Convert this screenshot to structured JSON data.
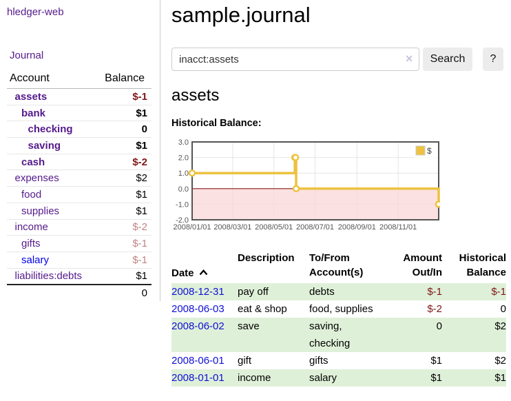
{
  "app": {
    "brand": "hledger-web",
    "nav_journal": "Journal"
  },
  "sidebar": {
    "table_headers": {
      "account": "Account",
      "balance": "Balance"
    },
    "accounts": [
      {
        "name": "assets",
        "depth": 1,
        "bold": true,
        "name_color": "purple",
        "balance": "$-1",
        "balance_color": "neg-strong"
      },
      {
        "name": "bank",
        "depth": 2,
        "bold": true,
        "name_color": "purple",
        "balance": "$1",
        "balance_color": "plain"
      },
      {
        "name": "checking",
        "depth": 3,
        "bold": true,
        "name_color": "purple",
        "balance": "0",
        "balance_color": "plain"
      },
      {
        "name": "saving",
        "depth": 3,
        "bold": true,
        "name_color": "purple",
        "balance": "$1",
        "balance_color": "plain"
      },
      {
        "name": "cash",
        "depth": 2,
        "bold": true,
        "name_color": "purple",
        "balance": "$-2",
        "balance_color": "neg-strong"
      },
      {
        "name": "expenses",
        "depth": 1,
        "bold": false,
        "name_color": "purple",
        "balance": "$2",
        "balance_color": "plain"
      },
      {
        "name": "food",
        "depth": 2,
        "bold": false,
        "name_color": "purple",
        "balance": "$1",
        "balance_color": "plain"
      },
      {
        "name": "supplies",
        "depth": 2,
        "bold": false,
        "name_color": "purple",
        "balance": "$1",
        "balance_color": "plain"
      },
      {
        "name": "income",
        "depth": 1,
        "bold": false,
        "name_color": "purple",
        "balance": "$-2",
        "balance_color": "neg-muted"
      },
      {
        "name": "gifts",
        "depth": 2,
        "bold": false,
        "name_color": "purple",
        "balance": "$-1",
        "balance_color": "neg-muted"
      },
      {
        "name": "salary",
        "depth": 2,
        "bold": false,
        "name_color": "blue",
        "balance": "$-1",
        "balance_color": "neg-muted"
      },
      {
        "name": "liabilities:debts",
        "depth": 1,
        "bold": false,
        "name_color": "purple",
        "balance": "$1",
        "balance_color": "plain"
      }
    ],
    "total": "0"
  },
  "main": {
    "title": "sample.journal",
    "search": {
      "value": "inacct:assets",
      "clear": "✕",
      "button_label": "Search",
      "help_label": "?"
    },
    "account_heading": "assets",
    "section_label": "Historical Balance:"
  },
  "chart_data": {
    "type": "line",
    "step": true,
    "title": "Historical Balance",
    "series": [
      {
        "name": "$",
        "color": "#edc240",
        "points": [
          [
            "2008-01-01",
            1
          ],
          [
            "2008-06-01",
            2
          ],
          [
            "2008-06-02",
            2
          ],
          [
            "2008-06-03",
            0
          ],
          [
            "2008-12-31",
            -1
          ]
        ]
      }
    ],
    "xlim": [
      "2008-01-01",
      "2008-12-31"
    ],
    "ylim": [
      -2,
      3
    ],
    "x_ticks": [
      {
        "date": "2008-01-01",
        "label": "2008/01/01"
      },
      {
        "date": "2008-03-01",
        "label": "2008/03/01"
      },
      {
        "date": "2008-05-01",
        "label": "2008/05/01"
      },
      {
        "date": "2008-07-01",
        "label": "2008/07/01"
      },
      {
        "date": "2008-09-01",
        "label": "2008/09/01"
      },
      {
        "date": "2008-11-01",
        "label": "2008/11/01"
      }
    ],
    "y_ticks": [
      "3.0",
      "2.0",
      "1.0",
      "0.0",
      "-1.0",
      "-2.0"
    ],
    "legend": {
      "label": "$",
      "position": "top-right"
    },
    "grid": true,
    "negative_fill": "#f9d7d7",
    "zero_line_color": "#871919",
    "tick_color": "#545454",
    "border_color": "#545454",
    "grid_color": "#e4e4e4"
  },
  "register": {
    "headers": {
      "date": "Date",
      "description": "Description",
      "accounts": "To/From\nAccount(s)",
      "amount": "Amount\nOut/In",
      "balance": "Historical\nBalance"
    },
    "rows": [
      {
        "date": "2008-12-31",
        "description": "pay off",
        "accounts": "debts",
        "amount": "$-1",
        "amount_negative": true,
        "balance": "$-1",
        "balance_negative": true,
        "shaded": true
      },
      {
        "date": "2008-06-03",
        "description": "eat & shop",
        "accounts": "food, supplies",
        "amount": "$-2",
        "amount_negative": true,
        "balance": "0",
        "balance_negative": false,
        "shaded": false
      },
      {
        "date": "2008-06-02",
        "description": "save",
        "accounts": "saving,\nchecking",
        "amount": "0",
        "amount_negative": false,
        "balance": "$2",
        "balance_negative": false,
        "shaded": true
      },
      {
        "date": "2008-06-01",
        "description": "gift",
        "accounts": "gifts",
        "amount": "$1",
        "amount_negative": false,
        "balance": "$2",
        "balance_negative": false,
        "shaded": false
      },
      {
        "date": "2008-01-01",
        "description": "income",
        "accounts": "salary",
        "amount": "$1",
        "amount_negative": false,
        "balance": "$1",
        "balance_negative": false,
        "shaded": true
      }
    ]
  },
  "colors": {
    "link_purple": "#551a8b",
    "link_blue": "#0000ee",
    "date_link_blue": "#0f0fd6",
    "negative_strong": "#7f1616",
    "negative_muted": "#c28484",
    "row_shade_green": "#dff0d8",
    "series_gold": "#edc240"
  }
}
